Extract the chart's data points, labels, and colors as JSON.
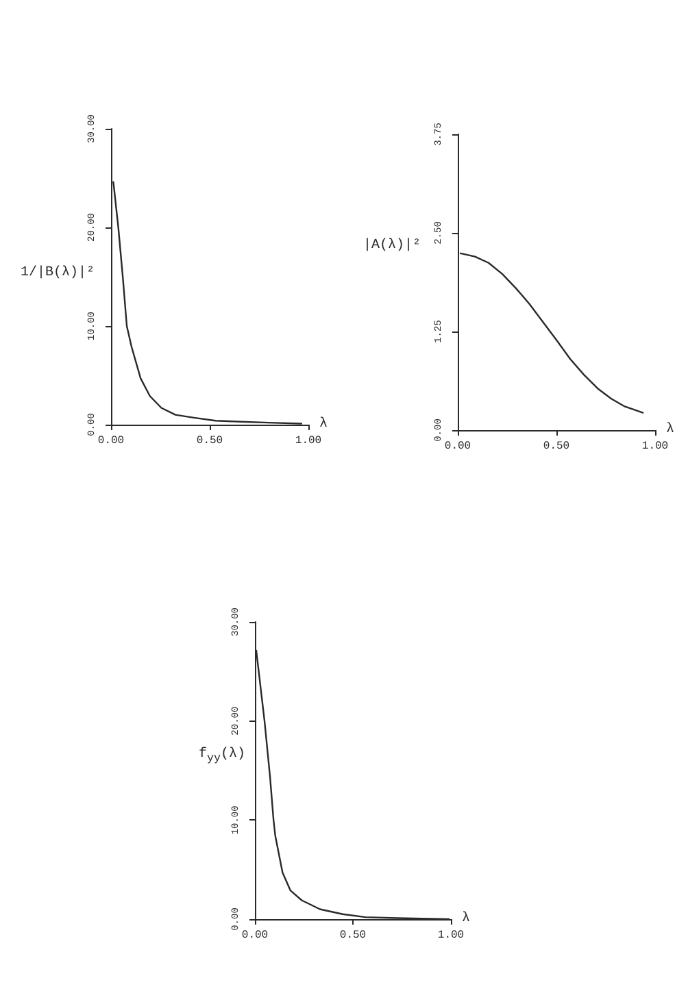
{
  "chart_data": [
    {
      "type": "line",
      "xlabel": "λ",
      "ylabel": "1/|B(λ)|²",
      "x": [
        0.012,
        0.037,
        0.06,
        0.08,
        0.104,
        0.15,
        0.197,
        0.255,
        0.326,
        0.42,
        0.53,
        0.66,
        0.8,
        0.965
      ],
      "values": [
        24.6,
        20.0,
        14.9,
        10.0,
        7.9,
        4.7,
        2.9,
        1.7,
        1.0,
        0.7,
        0.4,
        0.3,
        0.2,
        0.1
      ],
      "color": "#2a2a2a",
      "line_style": "solid",
      "xlim": [
        0,
        1
      ],
      "xticks": [
        {
          "value": 0,
          "label": "0.00"
        },
        {
          "value": 0.5,
          "label": "0.50"
        },
        {
          "value": 1,
          "label": "1.00"
        }
      ],
      "ylim": [
        0,
        30
      ],
      "yticks": [
        {
          "value": 0,
          "label": "0.00"
        },
        {
          "value": 10,
          "label": "10.00"
        },
        {
          "value": 20,
          "label": "20.00"
        },
        {
          "value": 30,
          "label": "30.00"
        }
      ]
    },
    {
      "type": "line",
      "xlabel": "λ",
      "ylabel": "|A(λ)|²",
      "x": [
        0.014,
        0.087,
        0.156,
        0.225,
        0.294,
        0.363,
        0.432,
        0.501,
        0.57,
        0.64,
        0.708,
        0.777,
        0.846,
        0.938
      ],
      "values": [
        2.24,
        2.2,
        2.12,
        1.98,
        1.8,
        1.6,
        1.37,
        1.14,
        0.9,
        0.7,
        0.53,
        0.4,
        0.3,
        0.22
      ],
      "color": "#2a2a2a",
      "line_style": "solid",
      "xlim": [
        0,
        1
      ],
      "xticks": [
        {
          "value": 0,
          "label": "0.00"
        },
        {
          "value": 0.5,
          "label": "0.50"
        },
        {
          "value": 1,
          "label": "1.00"
        }
      ],
      "ylim": [
        0,
        3.75
      ],
      "yticks": [
        {
          "value": 0,
          "label": "0.00"
        },
        {
          "value": 1.25,
          "label": "1.25"
        },
        {
          "value": 2.5,
          "label": "2.50"
        },
        {
          "value": 3.75,
          "label": "3.75"
        }
      ]
    },
    {
      "type": "line",
      "xlabel": "λ",
      "ylabel": "f$_{yy}$(λ)",
      "x": [
        0.007,
        0.049,
        0.077,
        0.095,
        0.104,
        0.141,
        0.181,
        0.239,
        0.332,
        0.448,
        0.564,
        0.726,
        0.99
      ],
      "values": [
        27.1,
        20.0,
        14.4,
        10.0,
        8.4,
        4.7,
        2.9,
        1.9,
        1.0,
        0.5,
        0.2,
        0.1,
        0.0
      ],
      "color": "#2a2a2a",
      "line_style": "solid",
      "xlim": [
        0,
        1
      ],
      "xticks": [
        {
          "value": 0,
          "label": "0.00"
        },
        {
          "value": 0.5,
          "label": "0.50"
        },
        {
          "value": 1,
          "label": "1.00"
        }
      ],
      "ylim": [
        0,
        30
      ],
      "yticks": [
        {
          "value": 0,
          "label": "0.00"
        },
        {
          "value": 10,
          "label": "10.00"
        },
        {
          "value": 20,
          "label": "20.00"
        },
        {
          "value": 30,
          "label": "30.00"
        }
      ]
    }
  ]
}
